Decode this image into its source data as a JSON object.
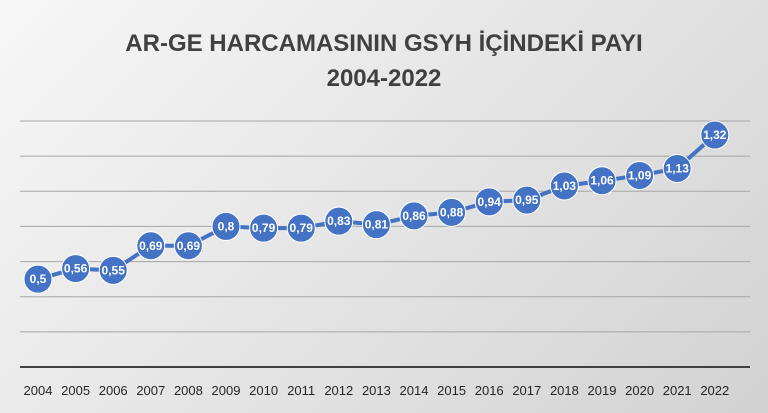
{
  "chart_data": {
    "type": "line",
    "title": "AR-GE HARCAMASININ GSYH İÇİNDEKİ PAYI",
    "subtitle": "2004-2022",
    "xlabel": "",
    "ylabel": "",
    "categories": [
      "2004",
      "2005",
      "2006",
      "2007",
      "2008",
      "2009",
      "2010",
      "2011",
      "2012",
      "2013",
      "2014",
      "2015",
      "2016",
      "2017",
      "2018",
      "2019",
      "2020",
      "2021",
      "2022"
    ],
    "values": [
      0.5,
      0.56,
      0.55,
      0.69,
      0.69,
      0.8,
      0.79,
      0.79,
      0.83,
      0.81,
      0.86,
      0.88,
      0.94,
      0.95,
      1.03,
      1.06,
      1.09,
      1.13,
      1.32
    ],
    "value_labels": [
      "0,5",
      "0,56",
      "0,55",
      "0,69",
      "0,69",
      "0,8",
      "0,79",
      "0,79",
      "0,83",
      "0,81",
      "0,86",
      "0,88",
      "0,94",
      "0,95",
      "1,03",
      "1,06",
      "1,09",
      "1,13",
      "1,32"
    ],
    "ylim": [
      0,
      1.4
    ],
    "y_major_unit": 0.2,
    "grid": true,
    "legend": "none",
    "colors": {
      "line": "#4472c4",
      "marker": "#4472c4",
      "gridline": "#a6a6a6",
      "axis": "#404040"
    }
  }
}
